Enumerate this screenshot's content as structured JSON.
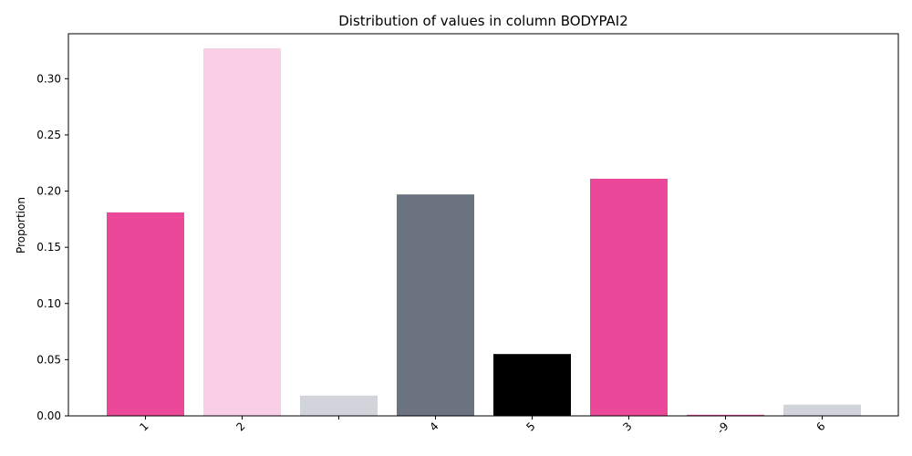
{
  "chart_data": {
    "type": "bar",
    "title": "Distribution of values in column BODYPAI2",
    "xlabel": "",
    "ylabel": "Proportion",
    "categories": [
      "1",
      "2",
      "",
      "4",
      "5",
      "3",
      "-9",
      "6"
    ],
    "values": [
      0.181,
      0.327,
      0.018,
      0.197,
      0.055,
      0.211,
      0.001,
      0.01
    ],
    "colors": [
      "#ec4899",
      "#f9cfe6",
      "#d1d5db",
      "#6b7280",
      "#000000",
      "#ec4899",
      "#ec4899",
      "#d1d5db"
    ],
    "ylim": [
      0,
      0.34
    ],
    "yticks": [
      0.0,
      0.05,
      0.1,
      0.15,
      0.2,
      0.25,
      0.3
    ],
    "ytick_labels": [
      "0.00",
      "0.05",
      "0.10",
      "0.15",
      "0.20",
      "0.25",
      "0.30"
    ],
    "grid": false,
    "legend": "none"
  }
}
